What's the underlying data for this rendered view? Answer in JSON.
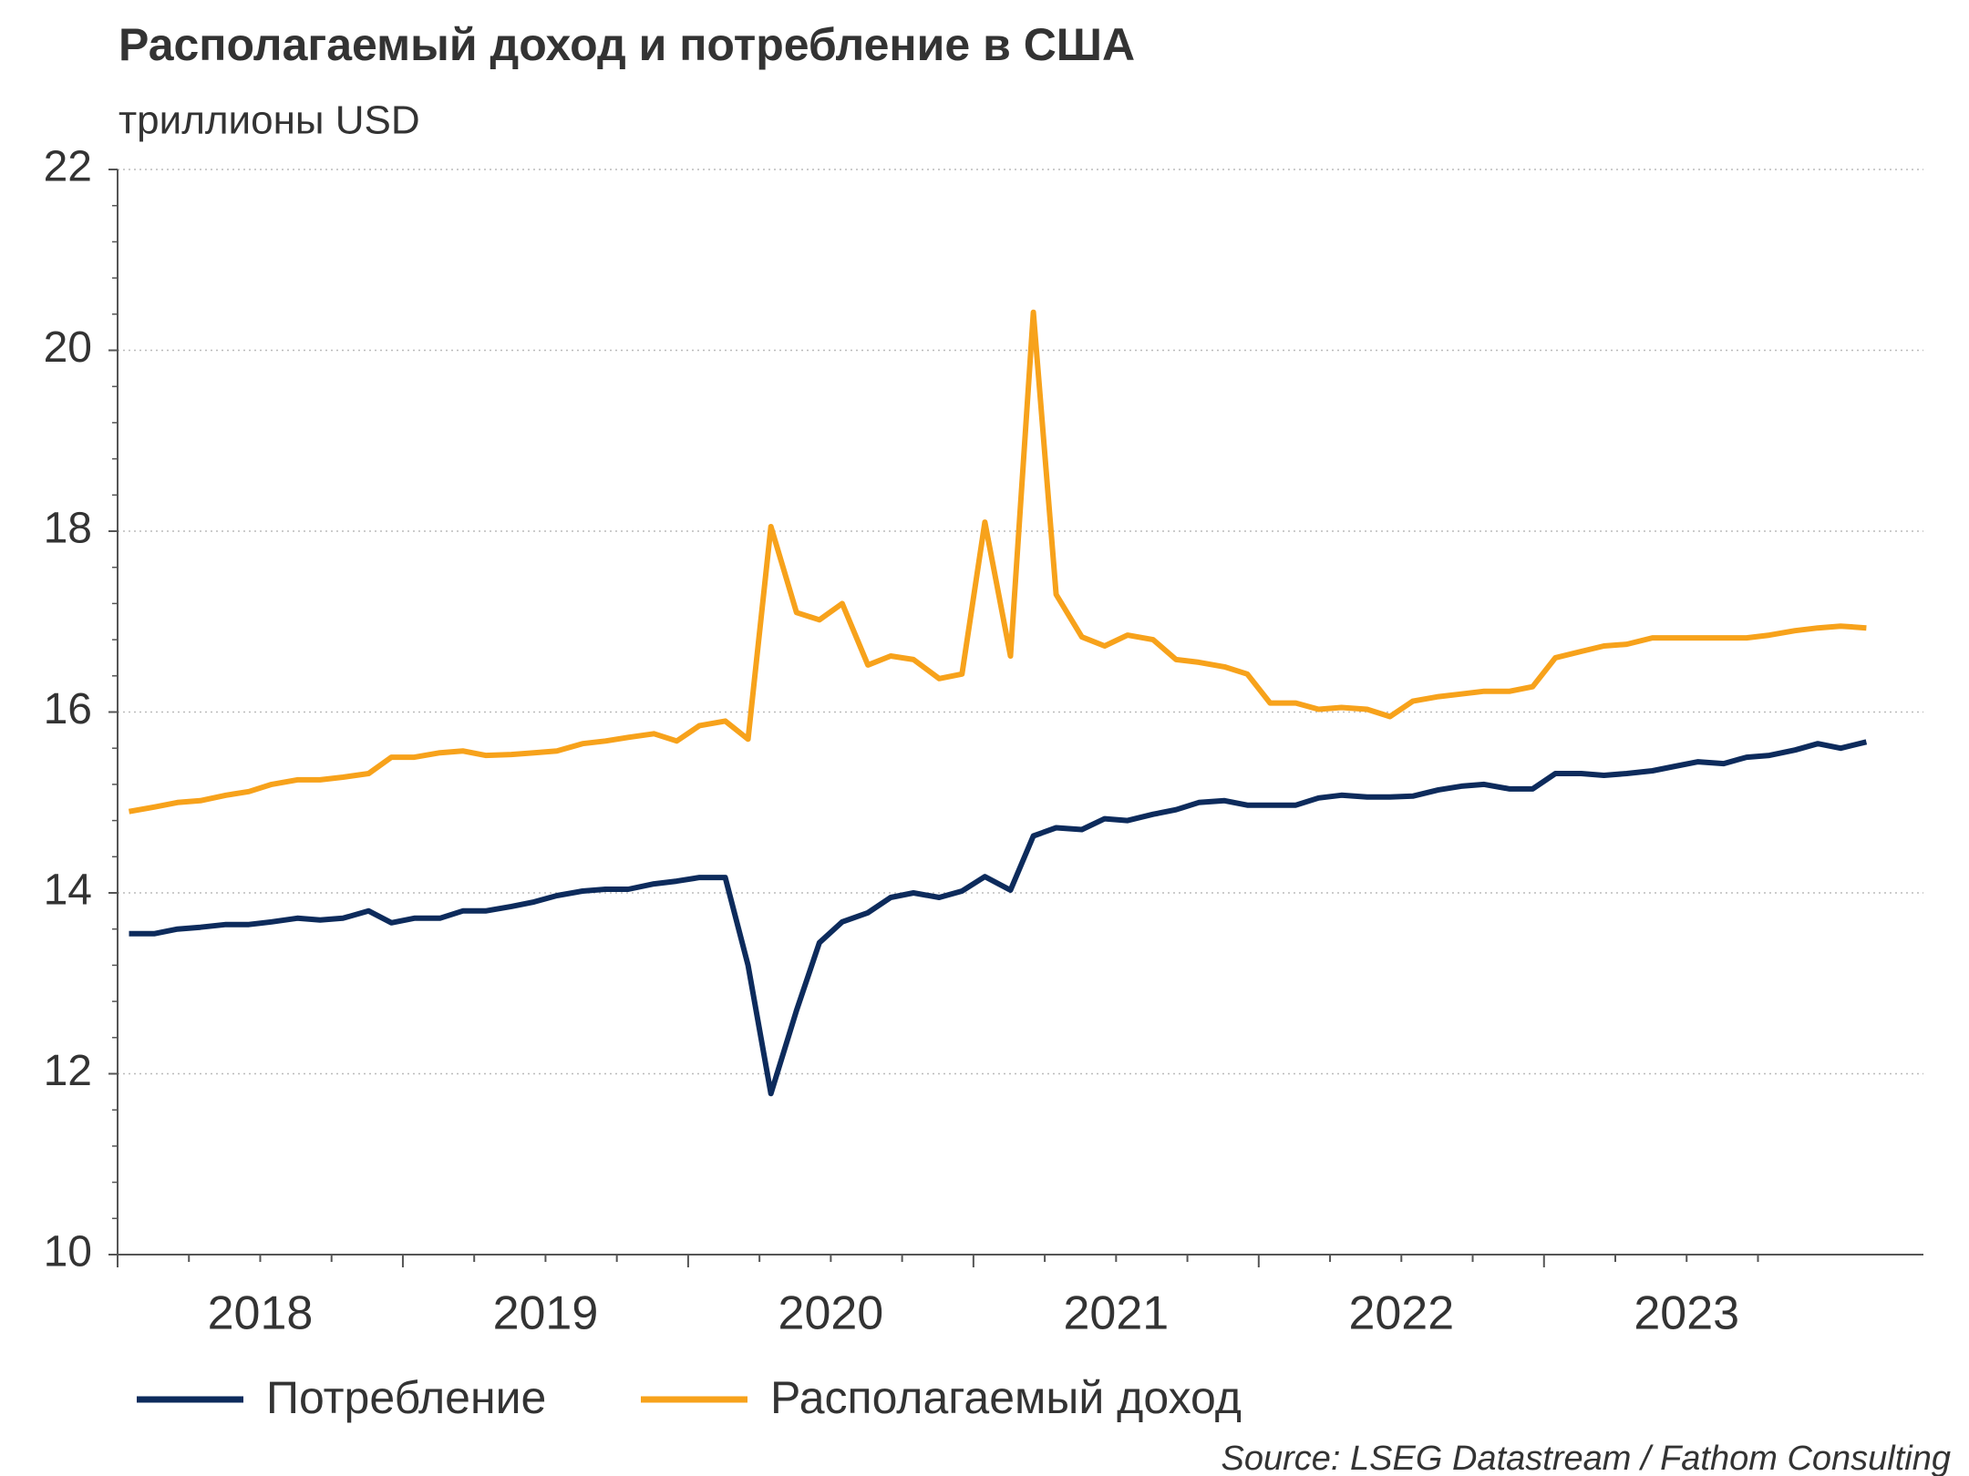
{
  "chart_data": {
    "type": "line",
    "title": "Располагаемый доход и потребление в США",
    "subtitle": "триллионы USD",
    "source": "Source: LSEG Datastream / Fathom Consulting",
    "x": [
      2018.04,
      2018.13,
      2018.21,
      2018.29,
      2018.38,
      2018.46,
      2018.54,
      2018.63,
      2018.71,
      2018.79,
      2018.88,
      2018.96,
      2019.04,
      2019.13,
      2019.21,
      2019.29,
      2019.38,
      2019.46,
      2019.54,
      2019.63,
      2019.71,
      2019.79,
      2019.88,
      2019.96,
      2020.04,
      2020.13,
      2020.21,
      2020.29,
      2020.38,
      2020.46,
      2020.54,
      2020.63,
      2020.71,
      2020.79,
      2020.88,
      2020.96,
      2021.04,
      2021.13,
      2021.21,
      2021.29,
      2021.38,
      2021.46,
      2021.54,
      2021.63,
      2021.71,
      2021.79,
      2021.88,
      2021.96,
      2022.04,
      2022.13,
      2022.21,
      2022.29,
      2022.38,
      2022.46,
      2022.54,
      2022.63,
      2022.71,
      2022.79,
      2022.88,
      2022.96,
      2023.04,
      2023.13,
      2023.21,
      2023.29,
      2023.38,
      2023.46,
      2023.54,
      2023.63,
      2023.71,
      2023.79,
      2023.88,
      2023.96,
      2024.04,
      2024.13
    ],
    "series": [
      {
        "name": "Потребление",
        "color": "#0d2b5c",
        "values": [
          13.55,
          13.55,
          13.6,
          13.62,
          13.65,
          13.65,
          13.68,
          13.72,
          13.7,
          13.72,
          13.8,
          13.67,
          13.72,
          13.72,
          13.8,
          13.8,
          13.85,
          13.9,
          13.97,
          14.02,
          14.04,
          14.04,
          14.1,
          14.13,
          14.17,
          14.17,
          13.2,
          11.78,
          12.7,
          13.45,
          13.68,
          13.78,
          13.95,
          14.0,
          13.95,
          14.02,
          14.18,
          14.03,
          14.63,
          14.72,
          14.7,
          14.82,
          14.8,
          14.87,
          14.92,
          15.0,
          15.02,
          14.97,
          14.97,
          14.97,
          15.05,
          15.08,
          15.06,
          15.06,
          15.07,
          15.14,
          15.18,
          15.2,
          15.15,
          15.15,
          15.32,
          15.32,
          15.3,
          15.32,
          15.35,
          15.4,
          15.45,
          15.43,
          15.5,
          15.52,
          15.58,
          15.65,
          15.6,
          15.67
        ]
      },
      {
        "name": "Располагаемый доход",
        "color": "#f7a21b",
        "values": [
          14.9,
          14.95,
          15.0,
          15.02,
          15.08,
          15.12,
          15.2,
          15.25,
          15.25,
          15.28,
          15.32,
          15.5,
          15.5,
          15.55,
          15.57,
          15.52,
          15.53,
          15.55,
          15.57,
          15.65,
          15.68,
          15.72,
          15.76,
          15.68,
          15.85,
          15.9,
          15.7,
          18.05,
          17.1,
          17.02,
          17.2,
          16.52,
          16.62,
          16.58,
          16.37,
          16.42,
          18.1,
          16.62,
          20.42,
          17.3,
          16.83,
          16.73,
          16.85,
          16.8,
          16.58,
          16.55,
          16.5,
          16.42,
          16.1,
          16.1,
          16.03,
          16.05,
          16.03,
          15.95,
          16.12,
          16.17,
          16.2,
          16.23,
          16.23,
          16.28,
          16.6,
          16.67,
          16.73,
          16.75,
          16.82,
          16.82,
          16.82,
          16.82,
          16.82,
          16.85,
          16.9,
          16.93,
          16.95,
          16.93
        ]
      }
    ],
    "xlim": [
      2018,
      2024.33
    ],
    "xticks": [
      {
        "value": 2018.5,
        "label": "2018"
      },
      {
        "value": 2019.5,
        "label": "2019"
      },
      {
        "value": 2020.5,
        "label": "2020"
      },
      {
        "value": 2021.5,
        "label": "2021"
      },
      {
        "value": 2022.5,
        "label": "2022"
      },
      {
        "value": 2023.5,
        "label": "2023"
      }
    ],
    "ylim": [
      10,
      22
    ],
    "yticks": [
      10,
      12,
      14,
      16,
      18,
      20,
      22
    ],
    "grid": true
  }
}
